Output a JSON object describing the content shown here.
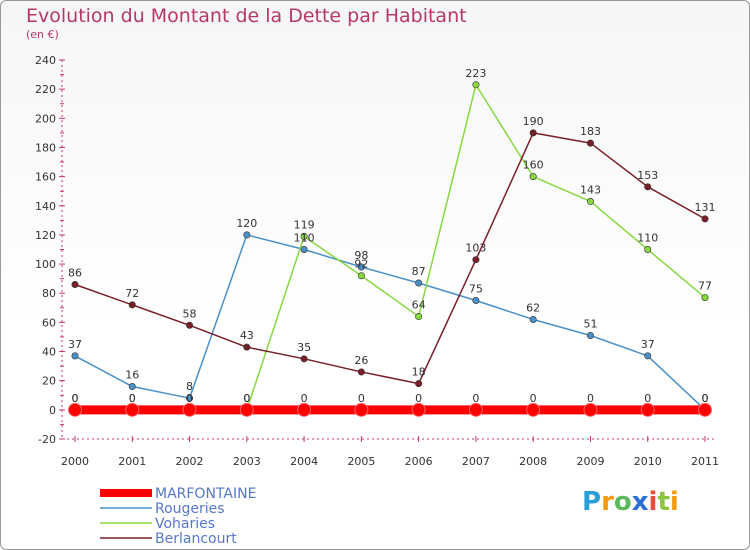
{
  "title": "Evolution du Montant de la Dette par Habitant",
  "subtitle": "(en €)",
  "logo": {
    "text": "Proxiti",
    "letters": [
      {
        "char": "P",
        "color": "#2a9fd6"
      },
      {
        "char": "r",
        "color": "#f39c12"
      },
      {
        "char": "o",
        "color": "#5cb85c"
      },
      {
        "char": "x",
        "color": "#2a6fd6"
      },
      {
        "char": "i",
        "color": "#e74c3c"
      },
      {
        "char": "t",
        "color": "#8cc63f"
      },
      {
        "char": "i",
        "color": "#f39c12"
      }
    ]
  },
  "chart_data": {
    "type": "line",
    "categories": [
      "2000",
      "2001",
      "2002",
      "2003",
      "2004",
      "2005",
      "2006",
      "2007",
      "2008",
      "2009",
      "2010",
      "2011"
    ],
    "ylim": [
      -20,
      240
    ],
    "yticks": [
      -20,
      0,
      20,
      40,
      60,
      80,
      100,
      120,
      140,
      160,
      180,
      200,
      220,
      240
    ],
    "grid": false,
    "legend_position": "bottom-left",
    "series": [
      {
        "name": "MARFONTAINE",
        "color": "#ff0000",
        "values": [
          0,
          0,
          0,
          0,
          0,
          0,
          0,
          0,
          0,
          0,
          0,
          0
        ],
        "labels": [
          "0",
          "0",
          "0",
          "0",
          "0",
          "0",
          "0",
          "0",
          "0",
          "0",
          "0",
          "0"
        ]
      },
      {
        "name": "Rougeries",
        "color": "#4a90c8",
        "values": [
          37,
          16,
          8,
          120,
          110,
          98,
          87,
          75,
          62,
          51,
          37,
          0
        ],
        "labels": [
          "37",
          "16",
          "8",
          "120",
          "110",
          "98",
          "87",
          "75",
          "62",
          "51",
          "37",
          "0"
        ]
      },
      {
        "name": "Voharies",
        "color": "#88d840",
        "values": [
          0,
          0,
          0,
          0,
          119,
          92,
          64,
          223,
          160,
          143,
          110,
          77
        ],
        "labels": [
          "0",
          "0",
          "0",
          "0",
          "119",
          "92",
          "64",
          "223",
          "160",
          "143",
          "110",
          "77"
        ]
      },
      {
        "name": "Berlancourt",
        "color": "#7a1f28",
        "values": [
          86,
          72,
          58,
          43,
          35,
          26,
          18,
          103,
          190,
          183,
          153,
          131
        ],
        "labels": [
          "86",
          "72",
          "58",
          "43",
          "35",
          "26",
          "18",
          "103",
          "190",
          "183",
          "153",
          "131"
        ]
      }
    ]
  }
}
